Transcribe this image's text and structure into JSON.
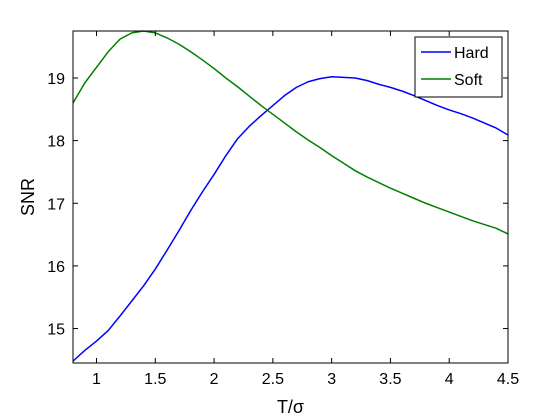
{
  "chart_data": {
    "type": "line",
    "title": "",
    "xlabel": "T/σ",
    "ylabel": "SNR",
    "xlim": [
      0.8,
      4.5
    ],
    "ylim": [
      14.45,
      19.75
    ],
    "grid": false,
    "legend_position": "top-right",
    "x_ticks": [
      1,
      1.5,
      2,
      2.5,
      3,
      3.5,
      4,
      4.5
    ],
    "x_tick_labels": [
      "1",
      "1.5",
      "2",
      "2.5",
      "3",
      "3.5",
      "4",
      "4.5"
    ],
    "y_ticks": [
      15,
      16,
      17,
      18,
      19
    ],
    "y_tick_labels": [
      "15",
      "16",
      "17",
      "18",
      "19"
    ],
    "series": [
      {
        "name": "Hard",
        "color": "#0000ff",
        "x": [
          0.8,
          0.9,
          1.0,
          1.1,
          1.2,
          1.3,
          1.4,
          1.5,
          1.6,
          1.7,
          1.8,
          1.9,
          2.0,
          2.1,
          2.2,
          2.3,
          2.4,
          2.5,
          2.6,
          2.7,
          2.8,
          2.9,
          3.0,
          3.1,
          3.2,
          3.3,
          3.4,
          3.5,
          3.6,
          3.7,
          3.8,
          3.9,
          4.0,
          4.1,
          4.2,
          4.3,
          4.4,
          4.5
        ],
        "values": [
          14.48,
          14.65,
          14.8,
          14.97,
          15.2,
          15.44,
          15.68,
          15.95,
          16.25,
          16.56,
          16.88,
          17.18,
          17.46,
          17.76,
          18.03,
          18.23,
          18.4,
          18.56,
          18.72,
          18.85,
          18.94,
          18.99,
          19.02,
          19.01,
          19.0,
          18.96,
          18.9,
          18.85,
          18.79,
          18.72,
          18.64,
          18.56,
          18.49,
          18.43,
          18.36,
          18.28,
          18.2,
          18.09
        ]
      },
      {
        "name": "Soft",
        "color": "#008000",
        "x": [
          0.8,
          0.9,
          1.0,
          1.1,
          1.2,
          1.3,
          1.4,
          1.5,
          1.6,
          1.7,
          1.8,
          1.9,
          2.0,
          2.1,
          2.2,
          2.3,
          2.4,
          2.5,
          2.6,
          2.7,
          2.8,
          2.9,
          3.0,
          3.1,
          3.2,
          3.3,
          3.4,
          3.5,
          3.6,
          3.7,
          3.8,
          3.9,
          4.0,
          4.1,
          4.2,
          4.3,
          4.4,
          4.5
        ],
        "values": [
          18.6,
          18.92,
          19.17,
          19.42,
          19.62,
          19.72,
          19.76,
          19.72,
          19.64,
          19.54,
          19.42,
          19.29,
          19.15,
          19.0,
          18.86,
          18.71,
          18.56,
          18.42,
          18.28,
          18.14,
          18.01,
          17.89,
          17.76,
          17.64,
          17.52,
          17.42,
          17.33,
          17.24,
          17.16,
          17.08,
          17.0,
          16.93,
          16.86,
          16.79,
          16.72,
          16.66,
          16.6,
          16.51
        ]
      }
    ]
  }
}
